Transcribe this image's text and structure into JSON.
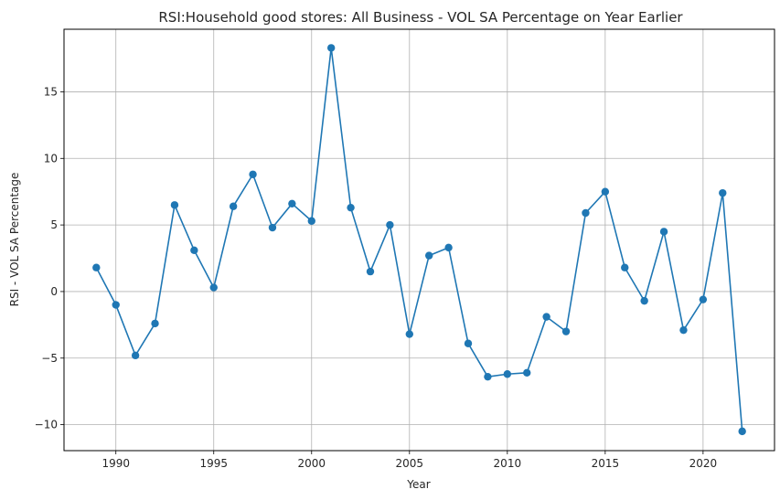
{
  "chart_data": {
    "type": "line",
    "title": "RSI:Household good stores: All Business - VOL SA Percentage on Year Earlier",
    "xlabel": "Year",
    "ylabel": "RSI - VOL SA Percentage",
    "xlim": [
      1987.35,
      2023.65
    ],
    "ylim": [
      -11.95,
      19.7
    ],
    "xticks": [
      1990,
      1995,
      2000,
      2005,
      2010,
      2015,
      2020
    ],
    "yticks": [
      -10,
      -5,
      0,
      5,
      10,
      15
    ],
    "ytick_labels": [
      "−10",
      "−5",
      "0",
      "5",
      "10",
      "15"
    ],
    "grid": true,
    "marker": "circle",
    "color": "#1f77b4",
    "series": [
      {
        "x": [
          1989,
          1990,
          1991,
          1992,
          1993,
          1994,
          1995,
          1996,
          1997,
          1998,
          1999,
          2000,
          2001,
          2002,
          2003,
          2004,
          2005,
          2006,
          2007,
          2008,
          2009,
          2010,
          2011,
          2012,
          2013,
          2014,
          2015,
          2016,
          2017,
          2018,
          2019,
          2020,
          2021,
          2022
        ],
        "y": [
          1.8,
          -1.0,
          -4.8,
          -2.4,
          6.5,
          3.1,
          0.3,
          6.4,
          8.8,
          4.8,
          6.6,
          5.3,
          18.3,
          6.3,
          1.5,
          5.0,
          -3.2,
          2.7,
          3.3,
          -3.9,
          -6.4,
          -6.2,
          -6.1,
          -1.9,
          -3.0,
          5.9,
          7.5,
          1.8,
          -0.7,
          4.5,
          -2.9,
          -0.6,
          7.4,
          -10.5
        ]
      }
    ]
  }
}
